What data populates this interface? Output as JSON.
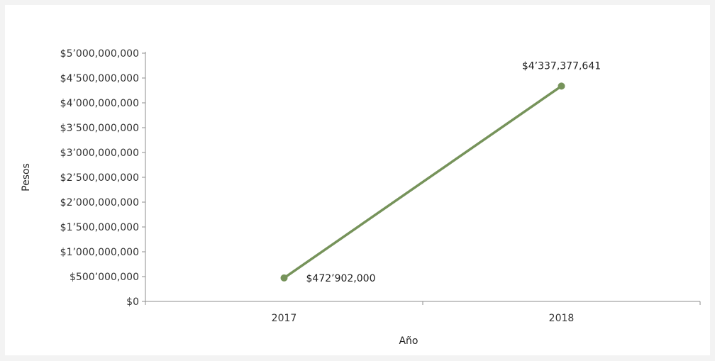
{
  "chart_data": {
    "type": "line",
    "title": "",
    "xlabel": "Año",
    "ylabel": "Pesos",
    "categories": [
      "2017",
      "2018"
    ],
    "ylim": [
      0,
      5000000000
    ],
    "y_ticks": [
      0,
      500000000,
      1000000000,
      1500000000,
      2000000000,
      2500000000,
      3000000000,
      3500000000,
      4000000000,
      4500000000,
      5000000000
    ],
    "y_tick_labels": [
      "$0",
      "$500’000,000",
      "$1’000,000,000",
      "$1’500,000,000",
      "$2’000,000,000",
      "$2’500,000,000",
      "$3’000,000,000",
      "$3’500,000,000",
      "$4’000,000,000",
      "$4’500,000,000",
      "$5’000,000,000"
    ],
    "series": [
      {
        "values": [
          472902000,
          4337377641
        ],
        "data_labels": [
          "$472’902,000",
          "$4’337,377,641"
        ],
        "color": "#76935a"
      }
    ],
    "grid": false,
    "legend": "none"
  }
}
